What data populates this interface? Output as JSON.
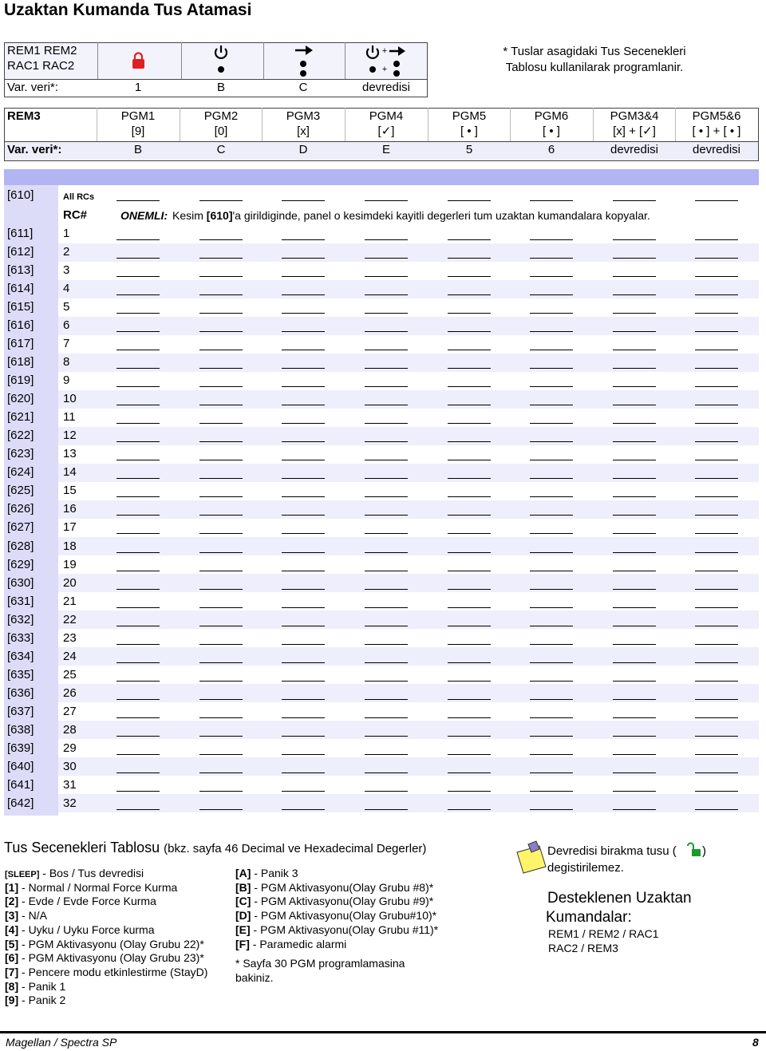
{
  "header": {
    "title": "Uzaktan Kumanda Tus Atamasi"
  },
  "table1": {
    "label": [
      "REM1 REM2",
      "RAC1 RAC2"
    ],
    "plus": "+",
    "defaults_label": "Var. veri*:",
    "defaults": [
      "1",
      "B",
      "C",
      "devredisi"
    ]
  },
  "table1_note": [
    "* Tuslar asagidaki Tus Secenekleri",
    "Tablosu kullanilarak programlanir."
  ],
  "table2": {
    "label": "REM3",
    "columns": [
      [
        "PGM1",
        "[9]"
      ],
      [
        "PGM2",
        "[0]"
      ],
      [
        "PGM3",
        "[x]"
      ],
      [
        "PGM4",
        "[✓]"
      ],
      [
        "PGM5",
        "[ • ]"
      ],
      [
        "PGM6",
        "[ • ]"
      ],
      [
        "PGM3&4",
        "[x] + [✓]"
      ],
      [
        "PGM5&6",
        "[ • ] + [ • ]"
      ]
    ],
    "defaults_label": "Var. veri*:",
    "defaults": [
      "B",
      "C",
      "D",
      "E",
      "5",
      "6",
      "devredisi",
      "devredisi"
    ]
  },
  "assignments": {
    "all": {
      "section": "[610]",
      "rc": "All RCs"
    },
    "rc_header": "RC#",
    "important_label": "ONEMLI:",
    "important_text": [
      "Kesim ",
      "[610]",
      "'a girildiginde, panel o kesimdeki kayitli degerleri tum uzaktan kumandalara kopyalar."
    ],
    "rows": [
      [
        "[611]",
        "1"
      ],
      [
        "[612]",
        "2"
      ],
      [
        "[613]",
        "3"
      ],
      [
        "[614]",
        "4"
      ],
      [
        "[615]",
        "5"
      ],
      [
        "[616]",
        "6"
      ],
      [
        "[617]",
        "7"
      ],
      [
        "[618]",
        "8"
      ],
      [
        "[619]",
        "9"
      ],
      [
        "[620]",
        "10"
      ],
      [
        "[621]",
        "11"
      ],
      [
        "[622]",
        "12"
      ],
      [
        "[623]",
        "13"
      ],
      [
        "[624]",
        "14"
      ],
      [
        "[625]",
        "15"
      ],
      [
        "[626]",
        "16"
      ],
      [
        "[627]",
        "17"
      ],
      [
        "[628]",
        "18"
      ],
      [
        "[629]",
        "19"
      ],
      [
        "[630]",
        "20"
      ],
      [
        "[631]",
        "21"
      ],
      [
        "[632]",
        "22"
      ],
      [
        "[633]",
        "23"
      ],
      [
        "[634]",
        "24"
      ],
      [
        "[635]",
        "25"
      ],
      [
        "[636]",
        "26"
      ],
      [
        "[637]",
        "27"
      ],
      [
        "[638]",
        "28"
      ],
      [
        "[639]",
        "29"
      ],
      [
        "[640]",
        "30"
      ],
      [
        "[641]",
        "31"
      ],
      [
        "[642]",
        "32"
      ]
    ]
  },
  "options": {
    "title": "Tus Secenekleri Tablosu",
    "subtitle": "(bkz. sayfa 46 Decimal ve Hexadecimal Degerler)",
    "left": [
      {
        "key": "[SLEEP]",
        "text": " - Bos / Tus devredisi"
      },
      {
        "key": "[1]",
        "text": " - Normal / Normal Force Kurma"
      },
      {
        "key": "[2]",
        "text": " - Evde / Evde Force Kurma"
      },
      {
        "key": "[3]",
        "text": " - N/A"
      },
      {
        "key": "[4]",
        "text": " - Uyku / Uyku Force kurma"
      },
      {
        "key": "[5]",
        "text": " - PGM Aktivasyonu (Olay Grubu 22)*"
      },
      {
        "key": "[6]",
        "text": " - PGM Aktivasyonu (Olay Grubu 23)*"
      },
      {
        "key": "[7]",
        "text": " - Pencere modu etkinlestirme (StayD)"
      },
      {
        "key": "[8]",
        "text": " - Panik 1"
      },
      {
        "key": "[9]",
        "text": " - Panik 2"
      }
    ],
    "right": [
      {
        "key": "[A]",
        "text": " - Panik 3"
      },
      {
        "key": "[B]",
        "text": " - PGM Aktivasyonu(Olay Grubu #8)*"
      },
      {
        "key": "[C]",
        "text": " - PGM Aktivasyonu(Olay Grubu #9)*"
      },
      {
        "key": "[D]",
        "text": " - PGM Aktivasyonu(Olay Grubu#10)*"
      },
      {
        "key": "[E]",
        "text": " - PGM Aktivasyonu(Olay Grubu #11)*"
      },
      {
        "key": "[F]",
        "text": " - Paramedic alarmi"
      }
    ],
    "footnote": [
      "* Sayfa 30 PGM programlamasina",
      "bakiniz."
    ]
  },
  "side": {
    "disable_note": [
      "Devredisi birakma tusu (",
      ")",
      "degistirilemez."
    ],
    "supported_title": [
      "Desteklenen Uzaktan",
      "Kumandalar:"
    ],
    "supported": [
      "REM1 / REM2 / RAC1",
      "RAC2 / REM3"
    ]
  },
  "footer": {
    "left": "Magellan / Spectra SP",
    "page": "8"
  }
}
